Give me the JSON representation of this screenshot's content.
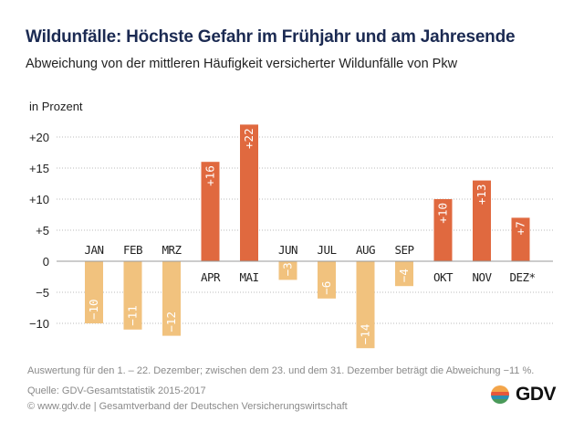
{
  "header": {
    "title": "Wildunfälle: Höchste Gefahr im Frühjahr und am Jahresende",
    "subtitle": "Abweichung von der mittleren Häufigkeit versicherter Wildunfälle von Pkw"
  },
  "colors": {
    "positive": "#E0693F",
    "negative": "#F1C27E",
    "title": "#1b2a52",
    "grid": "#bbbbbb",
    "axis": "#999999"
  },
  "chart_data": {
    "type": "bar",
    "title": "Wildunfälle: Höchste Gefahr im Frühjahr und am Jahresende",
    "subtitle": "Abweichung von der mittleren Häufigkeit versicherter Wildunfälle von Pkw",
    "ylabel": "in Prozent",
    "xlabel": "",
    "categories": [
      "JAN",
      "FEB",
      "MRZ",
      "APR",
      "MAI",
      "JUN",
      "JUL",
      "AUG",
      "SEP",
      "OKT",
      "NOV",
      "DEZ*"
    ],
    "values": [
      -10,
      -11,
      -12,
      16,
      22,
      -3,
      -6,
      -14,
      -4,
      10,
      13,
      7
    ],
    "value_labels": [
      "−10",
      "−11",
      "−12",
      "+16",
      "+22",
      "−3",
      "−6",
      "−14",
      "−4",
      "+10",
      "+13",
      "+7"
    ],
    "ylim": [
      -14,
      22
    ],
    "yticks": [
      20,
      15,
      10,
      5,
      0,
      -5,
      -10
    ],
    "ytick_labels": [
      "+20",
      "+15",
      "+10",
      "+5",
      "0",
      "−5",
      "−10"
    ],
    "grid": true,
    "legend": "none"
  },
  "footer": {
    "note": "Auswertung für den 1. – 22. Dezember; zwischen dem 23. und dem 31. Dezember beträgt die Abweichung −11 %.",
    "source": "Quelle: GDV-Gesamtstatistik 2015-2017",
    "copyright": "©  www.gdv.de  |  Gesamtverband der Deutschen Versicherungswirtschaft",
    "logo_text": "GDV"
  }
}
